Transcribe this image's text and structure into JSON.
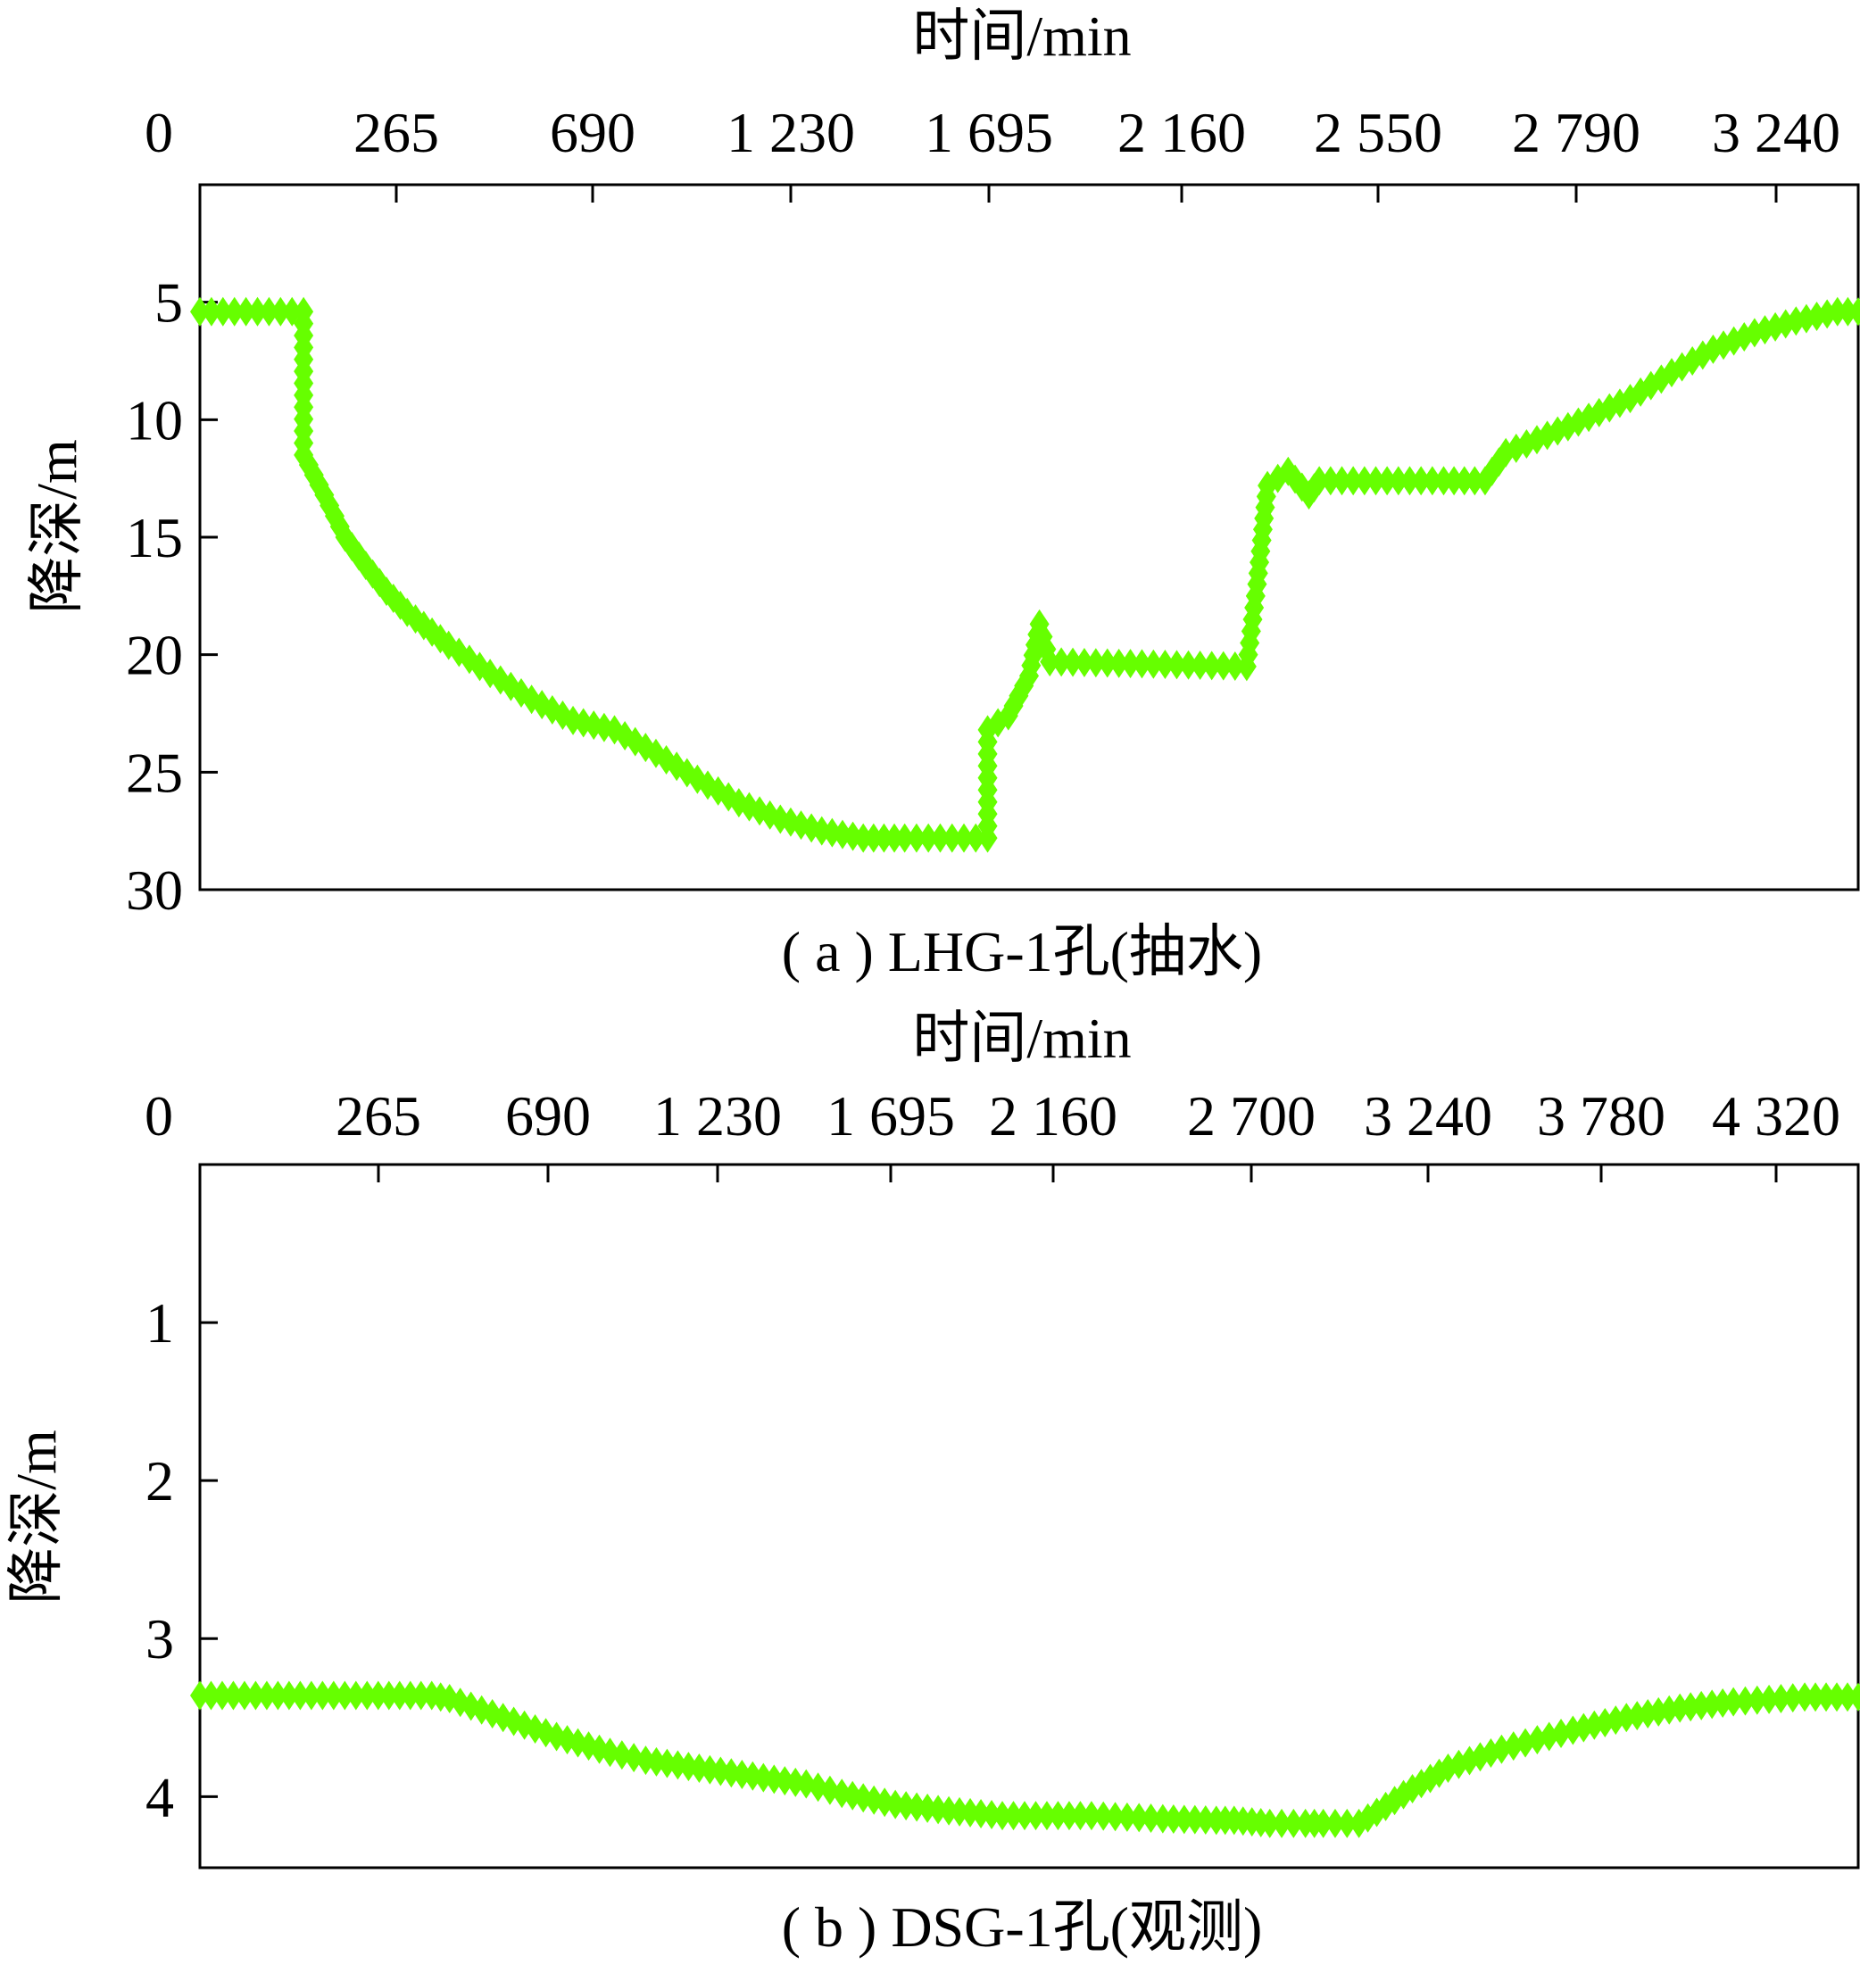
{
  "series_color": "#66FF00",
  "chart_data": [
    {
      "type": "line",
      "caption": "( a ) LHG-1孔(抽水)",
      "xlabel": "时间/min",
      "ylabel": "降深/m",
      "x_tick_labels": [
        "0",
        "265",
        "690",
        "1 230",
        "1 695",
        "2 160",
        "2 550",
        "2 790",
        "3 240"
      ],
      "y_ticks": [
        5,
        10,
        15,
        20,
        25,
        30
      ],
      "ylim": [
        0,
        30
      ],
      "y_inverted": true,
      "x_axis_position": "top",
      "grid": false,
      "marker": "diamond",
      "index_range": [
        0,
        8
      ],
      "points": [
        [
          0,
          5.4
        ],
        [
          0.5,
          5.4
        ],
        [
          0.5,
          11.5
        ],
        [
          0.6,
          13.2
        ],
        [
          0.7,
          15.0
        ],
        [
          0.8,
          16.2
        ],
        [
          0.9,
          17.3
        ],
        [
          1.0,
          18.2
        ],
        [
          1.2,
          19.6
        ],
        [
          1.4,
          20.8
        ],
        [
          1.6,
          21.9
        ],
        [
          1.8,
          22.8
        ],
        [
          2.0,
          23.2
        ],
        [
          2.2,
          24.2
        ],
        [
          2.4,
          25.3
        ],
        [
          2.6,
          26.3
        ],
        [
          2.8,
          27.0
        ],
        [
          3.0,
          27.5
        ],
        [
          3.2,
          27.8
        ],
        [
          3.4,
          27.8
        ],
        [
          3.8,
          27.8
        ],
        [
          3.8,
          23.2
        ],
        [
          3.9,
          22.6
        ],
        [
          4.0,
          20.9
        ],
        [
          4.05,
          18.7
        ],
        [
          4.1,
          20.3
        ],
        [
          4.6,
          20.4
        ],
        [
          5.05,
          20.5
        ],
        [
          5.1,
          17.0
        ],
        [
          5.15,
          12.8
        ],
        [
          5.25,
          12.2
        ],
        [
          5.35,
          13.2
        ],
        [
          5.4,
          12.6
        ],
        [
          6.0,
          12.6
        ],
        [
          6.2,
          12.6
        ],
        [
          6.3,
          11.4
        ],
        [
          6.6,
          10.3
        ],
        [
          6.9,
          9.1
        ],
        [
          7.1,
          8.0
        ],
        [
          7.3,
          7.0
        ],
        [
          7.5,
          6.3
        ],
        [
          7.7,
          5.8
        ],
        [
          7.9,
          5.4
        ],
        [
          8.0,
          5.4
        ]
      ]
    },
    {
      "type": "line",
      "caption": "( b ) DSG-1孔(观测)",
      "xlabel": "时间/min",
      "ylabel": "降深/m",
      "x_tick_labels": [
        "0",
        "265",
        "690",
        "1 230",
        "1 695",
        "2 160",
        "2 700",
        "3 240",
        "3 780",
        "4 320"
      ],
      "y_ticks": [
        1,
        2,
        3,
        4
      ],
      "ylim": [
        0,
        4.45
      ],
      "y_inverted": true,
      "x_axis_position": "top",
      "grid": false,
      "marker": "diamond",
      "index_range": [
        0,
        9.3
      ],
      "points": [
        [
          0,
          3.36
        ],
        [
          0.5,
          3.36
        ],
        [
          1.0,
          3.36
        ],
        [
          1.3,
          3.36
        ],
        [
          1.4,
          3.38
        ],
        [
          1.7,
          3.5
        ],
        [
          2.0,
          3.62
        ],
        [
          2.3,
          3.72
        ],
        [
          2.5,
          3.77
        ],
        [
          2.8,
          3.82
        ],
        [
          3.1,
          3.87
        ],
        [
          3.4,
          3.92
        ],
        [
          3.6,
          3.98
        ],
        [
          3.9,
          4.05
        ],
        [
          4.2,
          4.09
        ],
        [
          4.5,
          4.12
        ],
        [
          5.0,
          4.12
        ],
        [
          5.4,
          4.14
        ],
        [
          5.8,
          4.15
        ],
        [
          6.2,
          4.17
        ],
        [
          6.0,
          4.17
        ],
        [
          5.9,
          4.16
        ],
        [
          6.3,
          4.17
        ],
        [
          5.7,
          4.15
        ],
        [
          6.5,
          4.17
        ],
        [
          6.6,
          4.1
        ],
        [
          6.8,
          3.95
        ],
        [
          7.0,
          3.82
        ],
        [
          7.3,
          3.7
        ],
        [
          7.7,
          3.58
        ],
        [
          8.0,
          3.5
        ],
        [
          8.3,
          3.44
        ],
        [
          8.6,
          3.4
        ],
        [
          9.0,
          3.37
        ],
        [
          9.3,
          3.37
        ]
      ]
    }
  ]
}
